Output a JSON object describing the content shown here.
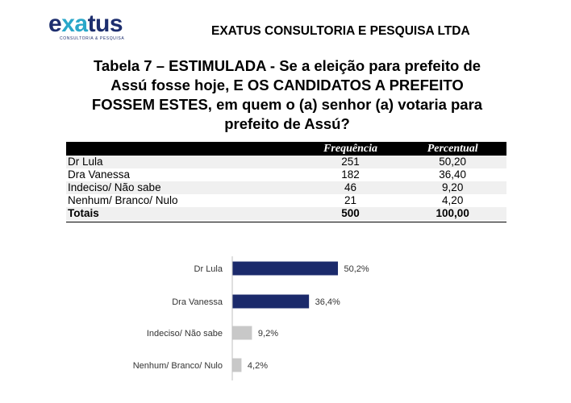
{
  "header": {
    "logo_word_a": "e",
    "logo_word_b": "xa",
    "logo_word_c": "tus",
    "logo_tagline": "CONSULTORIA & PESQUISA",
    "company": "EXATUS CONSULTORIA E PESQUISA LTDA"
  },
  "title": "Tabela 7 – ESTIMULADA - Se a eleição para prefeito de Assú fosse hoje, E OS CANDIDATOS A PREFEITO FOSSEM ESTES, em quem o (a) senhor (a) votaria para prefeito de Assú?",
  "table": {
    "headers": [
      "",
      "Frequência",
      "Percentual"
    ],
    "rows": [
      [
        "Dr Lula",
        "251",
        "50,20"
      ],
      [
        "Dra Vanessa",
        "182",
        "36,40"
      ],
      [
        "Indeciso/ Não sabe",
        "46",
        "9,20"
      ],
      [
        "Nenhum/ Branco/ Nulo",
        "21",
        "4,20"
      ]
    ],
    "total": [
      "Totais",
      "500",
      "100,00"
    ]
  },
  "chart_data": {
    "type": "bar",
    "orientation": "horizontal",
    "categories": [
      "Dr Lula",
      "Dra Vanessa",
      "Indeciso/ Não sabe",
      "Nenhum/ Branco/ Nulo"
    ],
    "values": [
      50.2,
      36.4,
      9.2,
      4.2
    ],
    "data_labels": [
      "50,2%",
      "36,4%",
      "9,2%",
      "4,2%"
    ],
    "colors": [
      "#1b2a6b",
      "#1b2a6b",
      "#c8c8c8",
      "#c8c8c8"
    ],
    "xlim": [
      0,
      100
    ],
    "grid": false,
    "legend": "none"
  }
}
